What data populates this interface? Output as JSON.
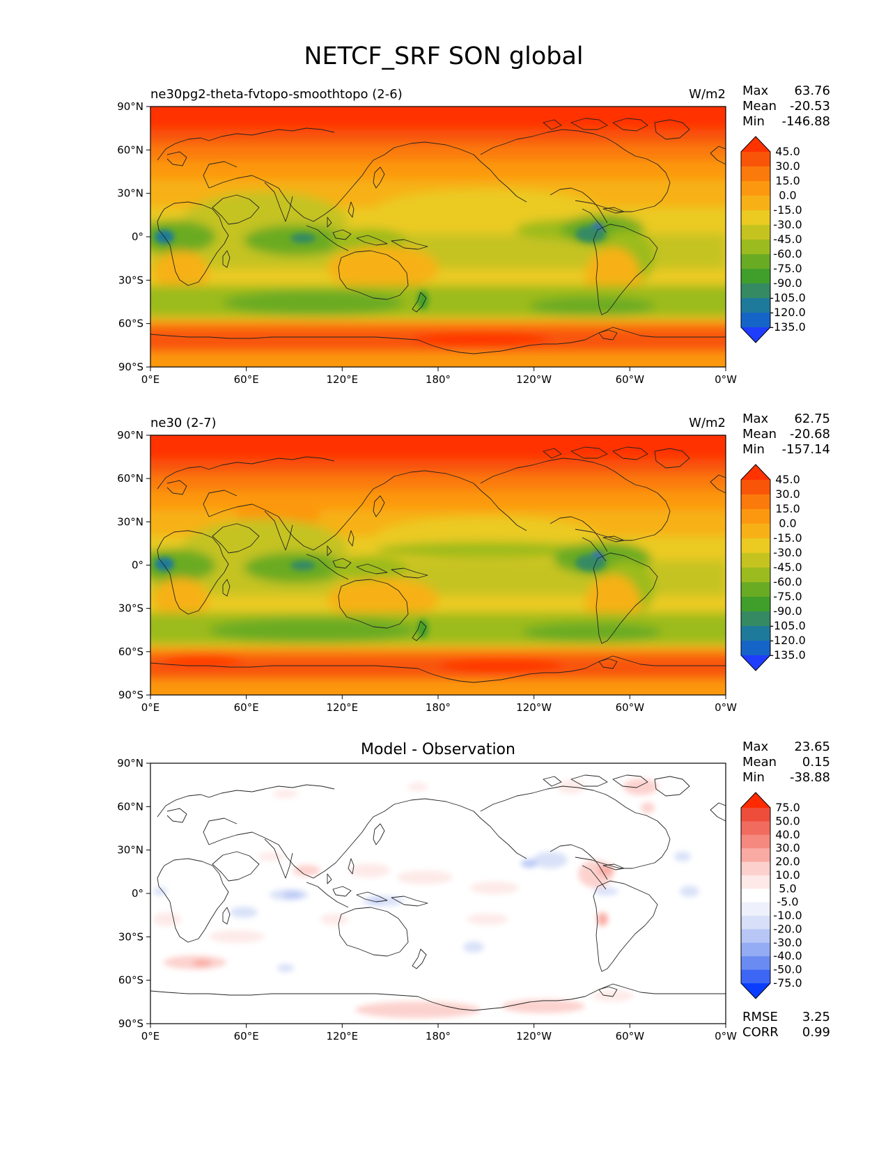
{
  "figure_title": "NETCF_SRF SON global",
  "x_ticks": [
    "0°E",
    "60°E",
    "120°E",
    "180°",
    "120°W",
    "60°W",
    "0°W"
  ],
  "y_ticks": [
    "90°N",
    "60°N",
    "30°N",
    "0°",
    "30°S",
    "60°S",
    "90°S"
  ],
  "panels": [
    {
      "label": "ne30pg2-theta-fvtopo-smoothtopo (2-6)",
      "units": "W/m2",
      "stats": {
        "max_label": "Max",
        "max": "63.76",
        "mean_label": "Mean",
        "mean": "-20.53",
        "min_label": "Min",
        "min": "-146.88"
      },
      "levels": [
        "45.0",
        "30.0",
        "15.0",
        "0.0",
        "-15.0",
        "-30.0",
        "-45.0",
        "-60.0",
        "-75.0",
        "-90.0",
        "-105.0",
        "-120.0",
        "-135.0"
      ]
    },
    {
      "label": "ne30 (2-7)",
      "units": "W/m2",
      "stats": {
        "max_label": "Max",
        "max": "62.75",
        "mean_label": "Mean",
        "mean": "-20.68",
        "min_label": "Min",
        "min": "-157.14"
      },
      "levels": [
        "45.0",
        "30.0",
        "15.0",
        "0.0",
        "-15.0",
        "-30.0",
        "-45.0",
        "-60.0",
        "-75.0",
        "-90.0",
        "-105.0",
        "-120.0",
        "-135.0"
      ]
    },
    {
      "title": "Model - Observation",
      "stats": {
        "max_label": "Max",
        "max": "23.65",
        "mean_label": "Mean",
        "mean": "0.15",
        "min_label": "Min",
        "min": "-38.88"
      },
      "levels": [
        "75.0",
        "50.0",
        "40.0",
        "30.0",
        "20.0",
        "10.0",
        "5.0",
        "-5.0",
        "-10.0",
        "-20.0",
        "-30.0",
        "-40.0",
        "-50.0",
        "-75.0"
      ],
      "metrics": {
        "rmse_label": "RMSE",
        "rmse": "3.25",
        "corr_label": "CORR",
        "corr": "0.99"
      }
    }
  ],
  "colors": {
    "field_scale": [
      "#1f3dff",
      "#1565c8",
      "#1e7a9a",
      "#358a63",
      "#3f9f2a",
      "#6aab24",
      "#9cbb1f",
      "#c5c320",
      "#ebca22",
      "#f7b117",
      "#fc9810",
      "#fb7a0c",
      "#f85508",
      "#ff3300"
    ],
    "diff_scale": [
      "#0a3dff",
      "#3d66f5",
      "#6a8bf2",
      "#94acf3",
      "#b7c6f5",
      "#d7e0f8",
      "#eef1fb",
      "#ffffff",
      "#fde9e7",
      "#fcd0cc",
      "#f9aaa3",
      "#f5897f",
      "#f16b5f",
      "#ee4d3c",
      "#ff2a00"
    ]
  }
}
